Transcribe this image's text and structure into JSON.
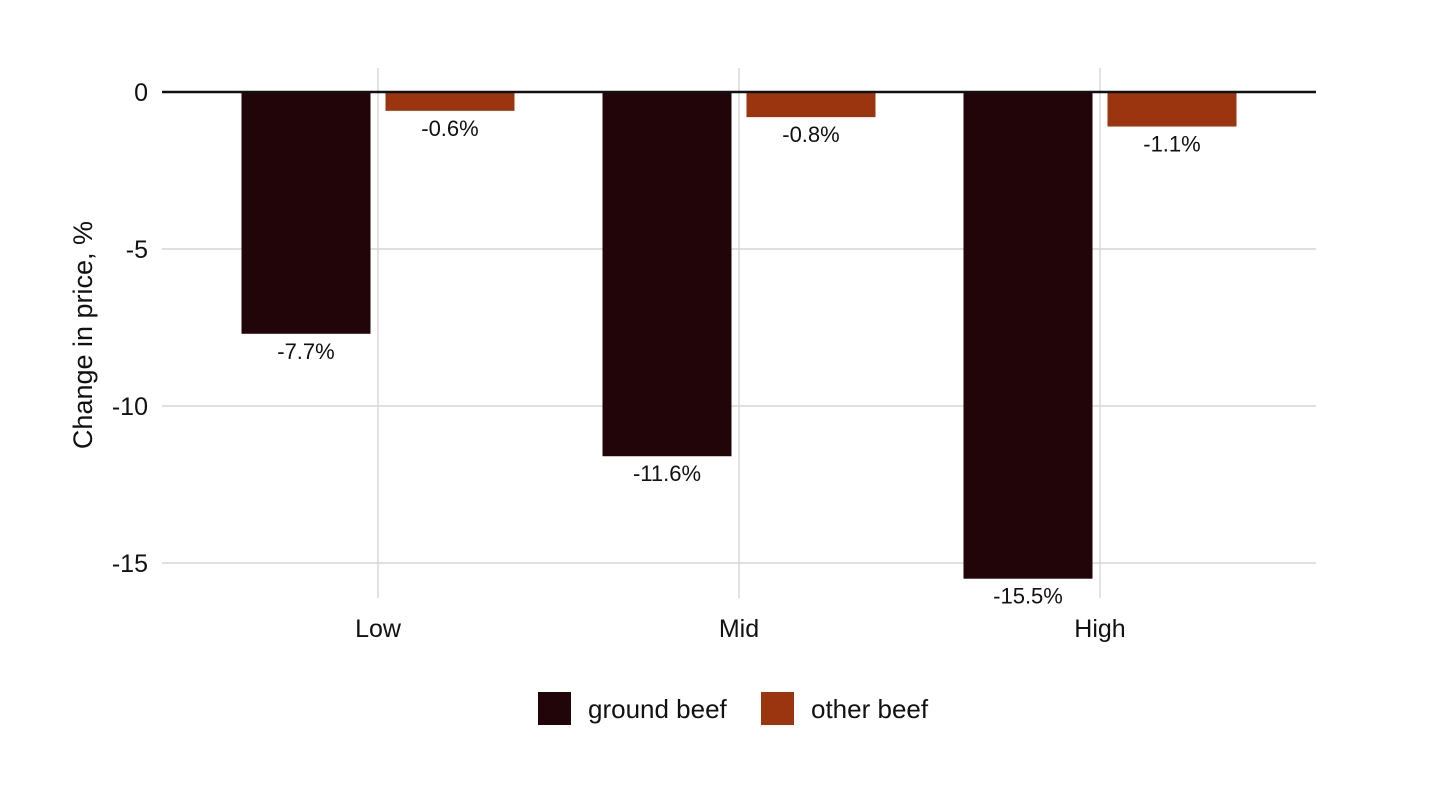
{
  "chart_data": {
    "type": "bar",
    "title": "",
    "xlabel": "",
    "ylabel": "Change in price, %",
    "categories": [
      "Low",
      "Mid",
      "High"
    ],
    "series": [
      {
        "name": "ground beef",
        "color": "#220508",
        "values": [
          -7.7,
          -11.6,
          -15.5
        ],
        "labels": [
          "-7.7%",
          "-11.6%",
          "-15.5%"
        ]
      },
      {
        "name": "other beef",
        "color": "#9a3510",
        "values": [
          -0.6,
          -0.8,
          -1.1
        ],
        "labels": [
          "-0.6%",
          "-0.8%",
          "-1.1%"
        ]
      }
    ],
    "yticks": [
      0,
      -5,
      -10,
      -15
    ],
    "ytick_labels": [
      "0",
      "-5",
      "-10",
      "-15"
    ],
    "ylim": [
      -16,
      0.5
    ],
    "grid": true,
    "legend_position": "bottom-center"
  }
}
